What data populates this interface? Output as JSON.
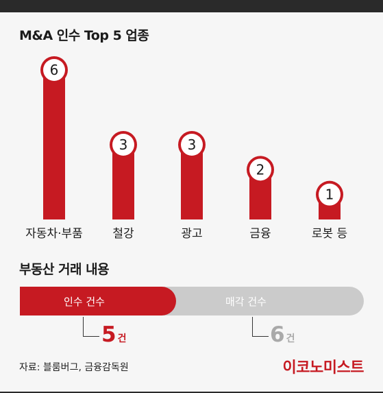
{
  "title": "M&A 인수 Top 5 업종",
  "chart_data": {
    "type": "bar",
    "title": "M&A 인수 Top 5 업종",
    "categories": [
      "자동차·부품",
      "철강",
      "광고",
      "금융",
      "로봇 등"
    ],
    "values": [
      6,
      3,
      3,
      2,
      1
    ],
    "ylim": [
      0,
      6
    ],
    "data_labels": [
      "6",
      "3",
      "3",
      "2",
      "1"
    ],
    "grid": false,
    "bar_color": "#c61a22"
  },
  "deals": {
    "title": "부동산 거래 내용",
    "acquisition": {
      "label": "인수 건수",
      "count": "5",
      "unit": "건",
      "value": 5,
      "color": "#c61a22"
    },
    "sale": {
      "label": "매각 건수",
      "count": "6",
      "unit": "건",
      "value": 6,
      "color": "#a9a9a9"
    }
  },
  "source": "자료: 블룸버그, 금융감독원",
  "brand": "이코노미스트",
  "colors": {
    "accent": "#c61a22",
    "muted": "#cbcbcb",
    "background": "#f6f6f6"
  }
}
